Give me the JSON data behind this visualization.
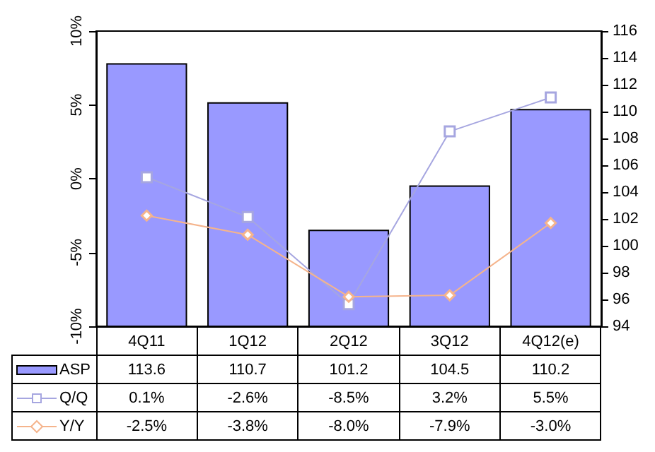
{
  "chart_data": {
    "type": "bar",
    "categories": [
      "4Q11",
      "1Q12",
      "2Q12",
      "3Q12",
      "4Q12(e)"
    ],
    "series": [
      {
        "name": "ASP",
        "axis": "y2",
        "color": "#9999ff",
        "values": [
          113.6,
          110.7,
          101.2,
          104.5,
          110.2
        ],
        "value_labels": [
          "113.6",
          "110.7",
          "101.2",
          "104.5",
          "110.2"
        ]
      },
      {
        "name": "Q/Q",
        "type": "line",
        "color": "#a6a6e0",
        "marker": "square",
        "values": [
          0.1,
          -2.6,
          -8.5,
          3.2,
          5.5
        ],
        "value_labels": [
          "0.1%",
          "-2.6%",
          "-8.5%",
          "3.2%",
          "5.5%"
        ]
      },
      {
        "name": "Y/Y",
        "type": "line",
        "color": "#f5b48c",
        "marker": "diamond",
        "values": [
          -2.5,
          -3.8,
          -8.0,
          -7.9,
          -3.0
        ],
        "value_labels": [
          "-2.5%",
          "-3.8%",
          "-8.0%",
          "-7.9%",
          "-3.0%"
        ]
      }
    ],
    "ylim": [
      -10,
      10
    ],
    "yticks": [
      {
        "value": -10,
        "label": "-10%"
      },
      {
        "value": -5,
        "label": "-5%"
      },
      {
        "value": 0,
        "label": "0%"
      },
      {
        "value": 5,
        "label": "5%"
      },
      {
        "value": 10,
        "label": "10%"
      }
    ],
    "y2lim": [
      94,
      116
    ],
    "y2ticks": [
      94,
      96,
      98,
      100,
      102,
      104,
      106,
      108,
      110,
      112,
      114,
      116
    ],
    "legend": "bottom left",
    "grid": false
  }
}
